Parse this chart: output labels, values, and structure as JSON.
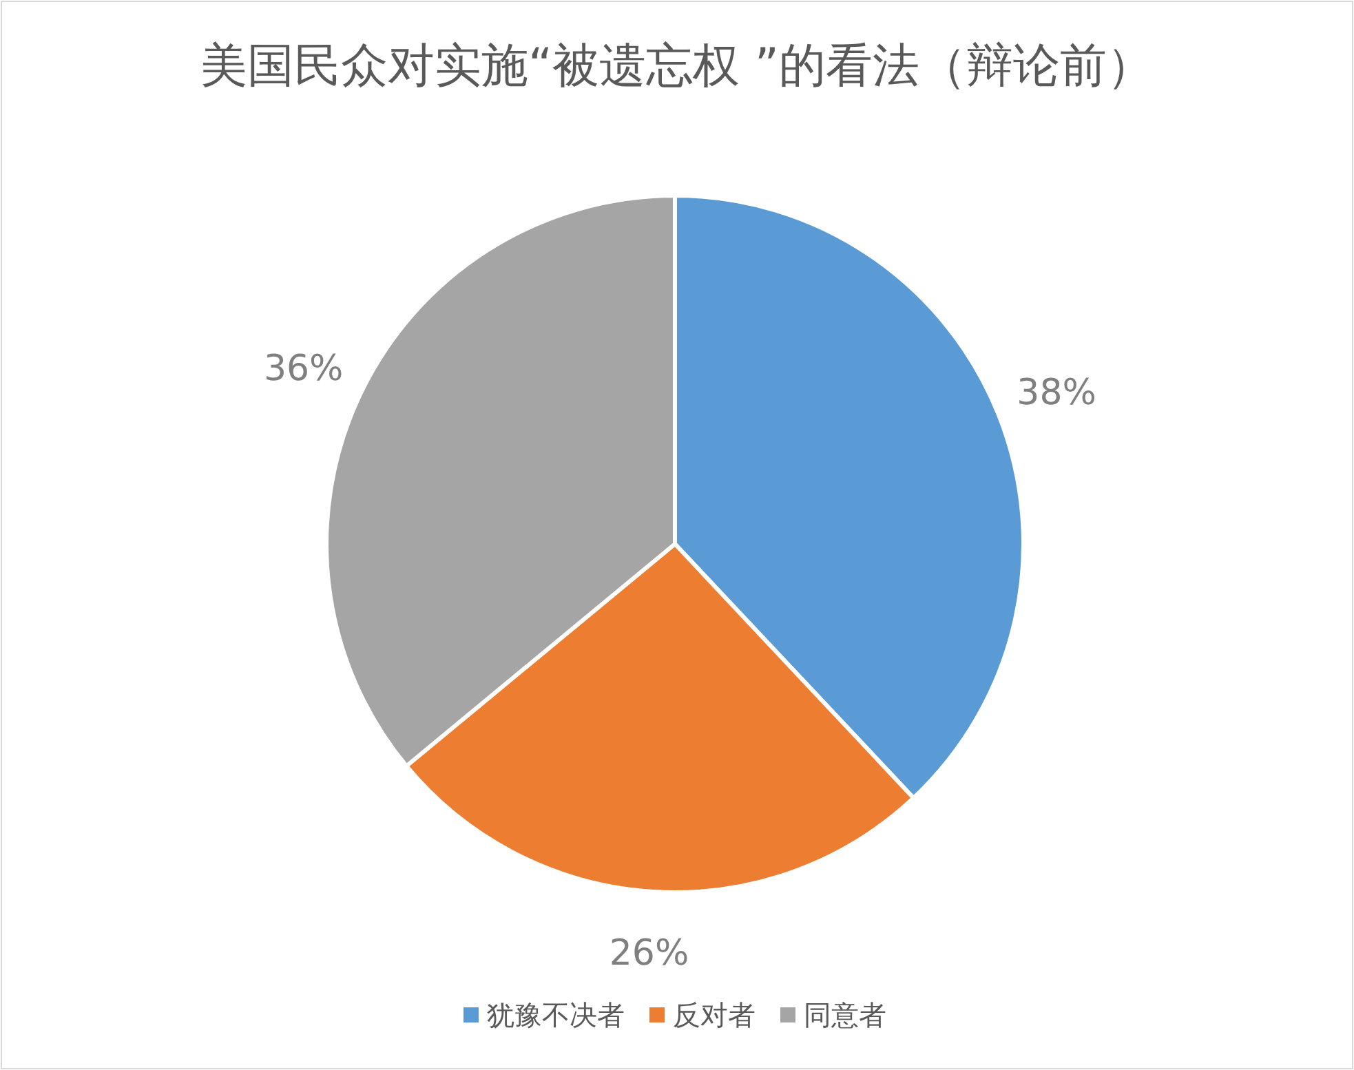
{
  "chart_data": {
    "type": "pie",
    "title": "美国民众对实施“被遗忘权 ”的看法（辩论前）",
    "categories": [
      "犹豫不决者",
      "反对者",
      "同意者"
    ],
    "values": [
      38,
      26,
      36
    ],
    "colors": [
      "#5b9bd5",
      "#ed7d31",
      "#a5a5a5"
    ],
    "value_labels": [
      "38%",
      "26%",
      "36%"
    ],
    "legend": "bottom"
  }
}
